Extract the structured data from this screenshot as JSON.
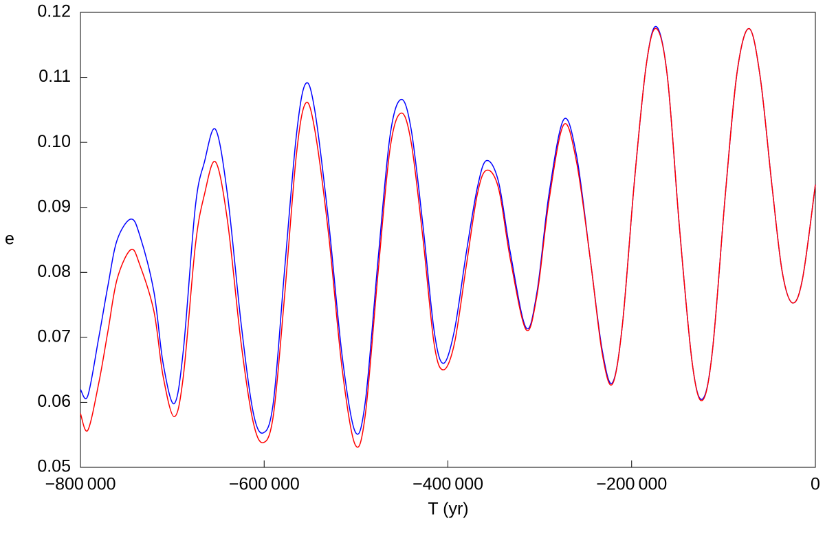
{
  "chart_data": {
    "type": "line",
    "xlabel": "T (yr)",
    "ylabel": "e",
    "x": [
      -800000,
      -792000,
      -780000,
      -770000,
      -760000,
      -745000,
      -735000,
      -720000,
      -710000,
      -698000,
      -688000,
      -675000,
      -665000,
      -653000,
      -640000,
      -625000,
      -612000,
      -601000,
      -590000,
      -578000,
      -565000,
      -555000,
      -545000,
      -530000,
      -515000,
      -501000,
      -490000,
      -476000,
      -463000,
      -451000,
      -440000,
      -427000,
      -415000,
      -405000,
      -393000,
      -380000,
      -368000,
      -358000,
      -345000,
      -332000,
      -315000,
      -303000,
      -290000,
      -274000,
      -260000,
      -245000,
      -232000,
      -221000,
      -210000,
      -197000,
      -184000,
      -173000,
      -161000,
      -148000,
      -134000,
      -123000,
      -112000,
      -98000,
      -85000,
      -72000,
      -60000,
      -47000,
      -36000,
      -25000,
      -14000,
      0
    ],
    "series": [
      {
        "color": "#0000ff",
        "values": [
          0.062,
          0.061,
          0.07,
          0.078,
          0.085,
          0.0882,
          0.0855,
          0.077,
          0.066,
          0.0598,
          0.068,
          0.09,
          0.097,
          0.102,
          0.092,
          0.072,
          0.0585,
          0.0553,
          0.06,
          0.08,
          0.101,
          0.109,
          0.105,
          0.088,
          0.067,
          0.0555,
          0.06,
          0.082,
          0.101,
          0.1066,
          0.102,
          0.087,
          0.071,
          0.066,
          0.071,
          0.083,
          0.093,
          0.0972,
          0.094,
          0.083,
          0.0715,
          0.077,
          0.092,
          0.1035,
          0.098,
          0.082,
          0.068,
          0.063,
          0.072,
          0.094,
          0.112,
          0.1178,
          0.11,
          0.087,
          0.066,
          0.0605,
          0.068,
          0.092,
          0.111,
          0.1175,
          0.11,
          0.093,
          0.08,
          0.0753,
          0.079,
          0.0935
        ]
      },
      {
        "color": "#ff0000",
        "values": [
          0.0583,
          0.0557,
          0.063,
          0.071,
          0.079,
          0.0835,
          0.081,
          0.074,
          0.064,
          0.0578,
          0.064,
          0.084,
          0.092,
          0.097,
          0.088,
          0.069,
          0.057,
          0.0538,
          0.058,
          0.076,
          0.098,
          0.106,
          0.102,
          0.086,
          0.065,
          0.0535,
          0.058,
          0.08,
          0.099,
          0.1045,
          0.1,
          0.085,
          0.069,
          0.065,
          0.069,
          0.081,
          0.092,
          0.0957,
          0.093,
          0.082,
          0.0712,
          0.0765,
          0.091,
          0.1027,
          0.097,
          0.082,
          0.0675,
          0.0628,
          0.072,
          0.094,
          0.112,
          0.1175,
          0.11,
          0.087,
          0.066,
          0.0603,
          0.068,
          0.092,
          0.111,
          0.1175,
          0.11,
          0.093,
          0.08,
          0.0753,
          0.079,
          0.0935
        ]
      }
    ],
    "xlim": [
      -800000,
      0
    ],
    "xticks": [
      {
        "value": -800000,
        "label": "−800 000"
      },
      {
        "value": -600000,
        "label": "−600 000"
      },
      {
        "value": -400000,
        "label": "−400 000"
      },
      {
        "value": -200000,
        "label": "−200 000"
      },
      0
    ],
    "ylim": [
      0.05,
      0.12
    ],
    "yticks": [
      0.05,
      0.06,
      0.07,
      0.08,
      0.09,
      {
        "value": 0.1,
        "label": "0.10"
      },
      0.11,
      0.12
    ],
    "grid": false
  }
}
